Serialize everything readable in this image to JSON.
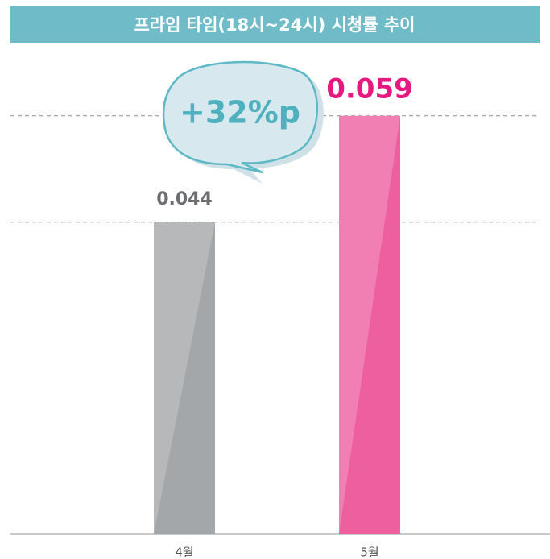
{
  "chart_data": {
    "type": "bar",
    "title": "프라임 타임(18시~24시) 시청률 추이",
    "categories": [
      "4월",
      "5월"
    ],
    "values": [
      0.044,
      0.059
    ],
    "colors": [
      "#a4a7a9",
      "#ee5fa0"
    ],
    "label_colors": [
      "#6d6e71",
      "#e5197f"
    ],
    "ylim": [
      0,
      0.07
    ],
    "annotation": "+32%p"
  }
}
